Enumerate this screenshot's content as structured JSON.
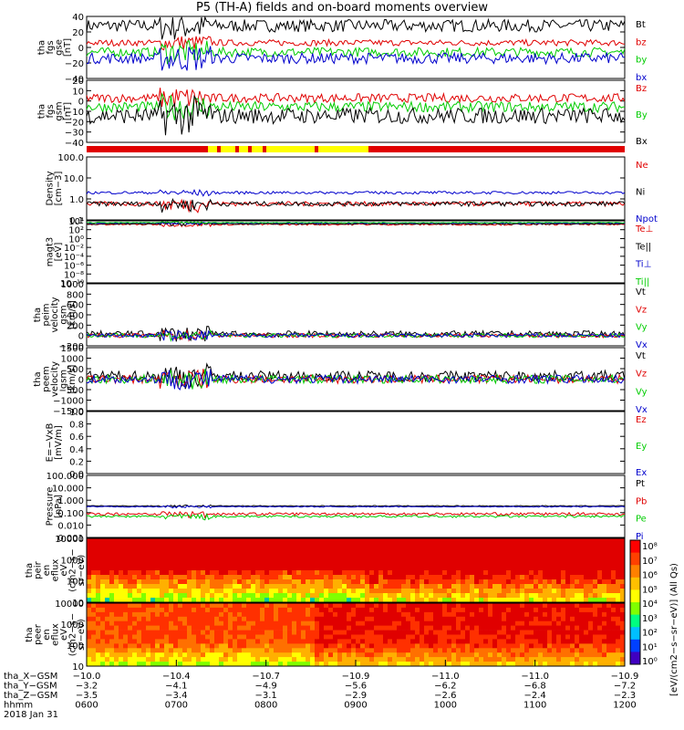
{
  "title": "P5 (TH-A) fields and on-board moments overview",
  "chart_data": [
    {
      "id": "fgs_gse",
      "type": "line",
      "ylabel": [
        "tha",
        "fgs",
        "gse",
        "[nT]"
      ],
      "yticks": [
        "40",
        "20",
        "0",
        "−20",
        "−40"
      ],
      "ylim": [
        -40,
        40
      ],
      "series": [
        {
          "name": "Bt",
          "color": "#000000",
          "base": 28,
          "noise": 8
        },
        {
          "name": "bz",
          "color": "#e00000",
          "base": 6,
          "noise": 4
        },
        {
          "name": "by",
          "color": "#00cc00",
          "base": -6,
          "noise": 6
        },
        {
          "name": "bx",
          "color": "#0000cc",
          "base": -14,
          "noise": 7
        }
      ]
    },
    {
      "id": "fgs_gsm",
      "type": "line",
      "ylabel": [
        "tha",
        "fgs",
        "gsm",
        "[nT]"
      ],
      "yticks": [
        "20",
        "10",
        "0",
        "−10",
        "−20",
        "−30",
        "−40"
      ],
      "ylim": [
        -45,
        25
      ],
      "series": [
        {
          "name": "Bz",
          "color": "#e00000",
          "base": 5,
          "noise": 5
        },
        {
          "name": "By",
          "color": "#00cc00",
          "base": -5,
          "noise": 6
        },
        {
          "name": "Bx",
          "color": "#000000",
          "base": -15,
          "noise": 9
        }
      ]
    },
    {
      "id": "density",
      "type": "line",
      "ylabel": [
        "Density",
        "[cm−3]"
      ],
      "yticks": [
        "100.0",
        "10.0",
        "1.0",
        "0.1"
      ],
      "ylim": [
        0.1,
        100
      ],
      "log": true,
      "series": [
        {
          "name": "Ne",
          "color": "#e00000",
          "base": 0.6,
          "noise": 0.3
        },
        {
          "name": "Ni",
          "color": "#000000",
          "base": 0.6,
          "noise": 0.3
        },
        {
          "name": "Npot",
          "color": "#0000cc",
          "base": 2.0,
          "noise": 0.6
        }
      ]
    },
    {
      "id": "magt3",
      "type": "line",
      "ylabel": [
        "magt3",
        "[eV]"
      ],
      "yticks": [
        "10⁴",
        "10²",
        "10⁰",
        "10⁻²",
        "10⁻⁴",
        "10⁻⁶",
        "10⁻⁸",
        "10⁻¹⁰"
      ],
      "ylim": [
        -10,
        4
      ],
      "log": false,
      "series": [
        {
          "name": "Te⊥",
          "color": "#e00000",
          "base": 3.2,
          "noise": 0.2
        },
        {
          "name": "Te||",
          "color": "#000000",
          "base": 3.3,
          "noise": 0.15
        },
        {
          "name": "Ti⊥",
          "color": "#0000cc",
          "base": 3.5,
          "noise": 0.1
        },
        {
          "name": "Ti||",
          "color": "#00cc00",
          "base": 3.6,
          "noise": 0.1
        }
      ]
    },
    {
      "id": "peim",
      "type": "line",
      "ylabel": [
        "tha",
        "peim",
        "velocity",
        "gsm",
        "[km/s]"
      ],
      "yticks": [
        "1000",
        "800",
        "600",
        "400",
        "200",
        "0",
        "−200"
      ],
      "ylim": [
        -200,
        1000
      ],
      "series": [
        {
          "name": "Vt",
          "color": "#000000",
          "base": 30,
          "noise": 60
        },
        {
          "name": "Vz",
          "color": "#e00000",
          "base": 0,
          "noise": 40
        },
        {
          "name": "Vy",
          "color": "#00cc00",
          "base": 0,
          "noise": 40
        },
        {
          "name": "Vx",
          "color": "#0000cc",
          "base": 0,
          "noise": 40
        }
      ]
    },
    {
      "id": "peem",
      "type": "line",
      "ylabel": [
        "tha",
        "peem",
        "velocity",
        "gsm",
        "[km/s]"
      ],
      "yticks": [
        "1500",
        "1000",
        "500",
        "0",
        "−500",
        "−1000",
        "−1500"
      ],
      "ylim": [
        -1500,
        1500
      ],
      "series": [
        {
          "name": "Vt",
          "color": "#000000",
          "base": 150,
          "noise": 250
        },
        {
          "name": "Vz",
          "color": "#e00000",
          "base": 0,
          "noise": 200
        },
        {
          "name": "Vy",
          "color": "#00cc00",
          "base": 0,
          "noise": 200
        },
        {
          "name": "Vx",
          "color": "#0000cc",
          "base": 0,
          "noise": 200
        }
      ]
    },
    {
      "id": "efield",
      "type": "line",
      "ylabel": [
        "E=−VxB",
        "[mV/m]"
      ],
      "yticks": [
        "1.0",
        "0.8",
        "0.6",
        "0.4",
        "0.2",
        "0.0"
      ],
      "ylim": [
        0,
        1
      ],
      "series": [
        {
          "name": "Ez",
          "color": "#e00000"
        },
        {
          "name": "Ey",
          "color": "#00cc00"
        },
        {
          "name": "Ex",
          "color": "#0000cc"
        }
      ]
    },
    {
      "id": "pressure",
      "type": "line",
      "ylabel": [
        "Pressure",
        "[nPa]"
      ],
      "yticks": [
        "100.000",
        "10.000",
        "1.000",
        "0.100",
        "0.010",
        "0.001"
      ],
      "ylim": [
        0.001,
        100
      ],
      "log": true,
      "series": [
        {
          "name": "Pt",
          "color": "#000000",
          "base": 0.35,
          "noise": 0.05
        },
        {
          "name": "Pb",
          "color": "#e00000",
          "base": 0.08,
          "noise": 0.04
        },
        {
          "name": "Pe",
          "color": "#00cc00",
          "base": 0.05,
          "noise": 0.02
        },
        {
          "name": "Pi",
          "color": "#0000cc",
          "base": 0.3,
          "noise": 0.05
        }
      ]
    },
    {
      "id": "peir_spec",
      "type": "heatmap",
      "ylabel": [
        "tha",
        "peir",
        "en",
        "eflux",
        "eV",
        "(cm2−s−",
        "sr−eV)"
      ],
      "yticks": [
        "10000",
        "1000",
        "100",
        "10"
      ]
    },
    {
      "id": "peer_spec",
      "type": "heatmap",
      "ylabel": [
        "tha",
        "peer",
        "en",
        "eflux",
        "eV",
        "(cm2−s−",
        "sr−eV)"
      ],
      "yticks": [
        "10000",
        "1000",
        "100",
        "10"
      ]
    }
  ],
  "colorbar": {
    "ticks": [
      "10⁸",
      "10⁷",
      "10⁶",
      "10⁵",
      "10⁴",
      "10³",
      "10²",
      "10¹",
      "10⁰"
    ],
    "label": "[eV/(cm2−s−sr−eV)] (All Qs)"
  },
  "x_axis": {
    "rows": [
      {
        "label": "tha_X−GSM",
        "values": [
          "−10.0",
          "−10.4",
          "−10.7",
          "−10.9",
          "−11.0",
          "−11.0",
          "−10.9"
        ]
      },
      {
        "label": "tha_Y−GSM",
        "values": [
          "−3.2",
          "−4.1",
          "−4.9",
          "−5.6",
          "−6.2",
          "−6.8",
          "−7.2"
        ]
      },
      {
        "label": "tha_Z−GSM",
        "values": [
          "−3.5",
          "−3.4",
          "−3.1",
          "−2.9",
          "−2.6",
          "−2.4",
          "−2.3"
        ]
      },
      {
        "label": "hhmm",
        "values": [
          "0600",
          "0700",
          "0800",
          "0900",
          "1000",
          "1100",
          "1200"
        ]
      }
    ],
    "date": "2018 Jan 31"
  },
  "colors": {
    "black": "#000000",
    "red": "#e00000",
    "green": "#00cc00",
    "blue": "#0000cc",
    "yellow": "#ffff00"
  }
}
